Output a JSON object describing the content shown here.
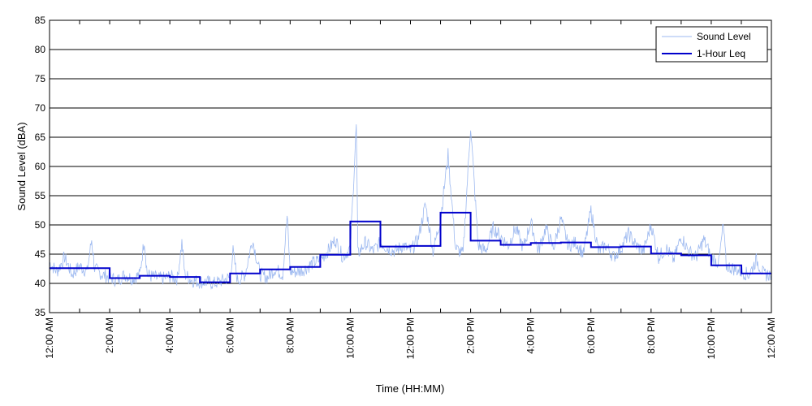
{
  "chart_data": {
    "type": "line",
    "xlabel": "Time (HH:MM)",
    "ylabel": "Sound Level (dBA)",
    "xlim": [
      0,
      24
    ],
    "ylim": [
      35,
      85
    ],
    "y_ticks": [
      35,
      40,
      45,
      50,
      55,
      60,
      65,
      70,
      75,
      80,
      85
    ],
    "x_tick_hours": [
      0,
      2,
      4,
      6,
      8,
      10,
      12,
      14,
      16,
      18,
      20,
      22,
      24
    ],
    "x_tick_labels": [
      "12:00 AM",
      "2:00 AM",
      "4:00 AM",
      "6:00 AM",
      "8:00 AM",
      "10:00 AM",
      "12:00 PM",
      "2:00 PM",
      "4:00 PM",
      "6:00 PM",
      "8:00 PM",
      "10:00 PM",
      "12:00 AM"
    ],
    "grid": "horizontal",
    "legend_position": "top-right",
    "series": [
      {
        "name": "Sound Level",
        "color": "#9db9f0",
        "style": "thin-noisy",
        "x_hours": [
          0.0,
          0.25,
          0.5,
          0.75,
          1.0,
          1.25,
          1.4,
          1.5,
          1.75,
          2.0,
          2.25,
          2.5,
          2.75,
          3.0,
          3.15,
          3.25,
          3.5,
          3.75,
          4.0,
          4.25,
          4.4,
          4.5,
          4.75,
          5.0,
          5.25,
          5.5,
          5.75,
          6.0,
          6.1,
          6.25,
          6.5,
          6.75,
          7.0,
          7.25,
          7.5,
          7.75,
          7.9,
          8.0,
          8.25,
          8.5,
          8.75,
          9.0,
          9.25,
          9.5,
          9.75,
          10.0,
          10.2,
          10.25,
          10.5,
          10.75,
          11.0,
          11.25,
          11.5,
          11.75,
          12.0,
          12.25,
          12.5,
          12.75,
          13.0,
          13.25,
          13.5,
          13.75,
          14.0,
          14.25,
          14.5,
          14.75,
          15.0,
          15.25,
          15.5,
          15.75,
          16.0,
          16.25,
          16.5,
          16.75,
          17.0,
          17.25,
          17.5,
          17.75,
          18.0,
          18.25,
          18.5,
          18.75,
          19.0,
          19.25,
          19.5,
          19.75,
          20.0,
          20.25,
          20.5,
          20.75,
          21.0,
          21.25,
          21.5,
          21.75,
          22.0,
          22.25,
          22.4,
          22.5,
          22.75,
          23.0,
          23.25,
          23.5,
          23.75,
          24.0
        ],
        "values": [
          43.5,
          42.0,
          44.5,
          41.5,
          43.0,
          42.0,
          47.5,
          42.5,
          41.5,
          41.0,
          40.5,
          41.5,
          40.8,
          41.5,
          47.5,
          41.5,
          41.0,
          40.8,
          41.2,
          40.8,
          47.0,
          41.5,
          40.5,
          40.3,
          40.2,
          40.0,
          40.5,
          41.0,
          45.5,
          40.5,
          41.5,
          47.5,
          41.5,
          41.0,
          42.5,
          41.5,
          51.5,
          42.0,
          42.0,
          42.5,
          43.5,
          44.0,
          45.5,
          47.5,
          44.5,
          46.0,
          67.0,
          45.0,
          47.0,
          45.5,
          47.0,
          46.0,
          45.5,
          46.5,
          45.5,
          47.5,
          53.5,
          45.5,
          51.0,
          62.0,
          46.0,
          45.0,
          67.0,
          46.5,
          45.5,
          49.5,
          48.0,
          46.5,
          49.5,
          46.0,
          50.5,
          45.5,
          49.5,
          46.0,
          51.0,
          46.5,
          47.0,
          45.0,
          52.5,
          45.5,
          46.5,
          44.5,
          46.0,
          48.5,
          46.5,
          45.5,
          50.0,
          44.5,
          46.0,
          44.0,
          48.0,
          45.5,
          44.5,
          47.5,
          44.5,
          43.5,
          50.0,
          43.0,
          42.5,
          42.0,
          41.5,
          44.0,
          41.5,
          41.5
        ]
      },
      {
        "name": "1-Hour Leq",
        "color": "#0000cc",
        "style": "step",
        "hour_start": [
          0,
          1,
          2,
          3,
          4,
          5,
          6,
          7,
          8,
          9,
          10,
          11,
          12,
          13,
          14,
          15,
          16,
          17,
          18,
          19,
          20,
          21,
          22,
          23
        ],
        "values": [
          42.6,
          42.6,
          40.9,
          41.3,
          41.1,
          40.2,
          41.7,
          42.4,
          42.8,
          44.9,
          50.6,
          46.3,
          46.4,
          52.1,
          47.3,
          46.6,
          46.9,
          47.0,
          46.2,
          46.3,
          45.1,
          44.8,
          43.1,
          41.7
        ]
      }
    ]
  }
}
